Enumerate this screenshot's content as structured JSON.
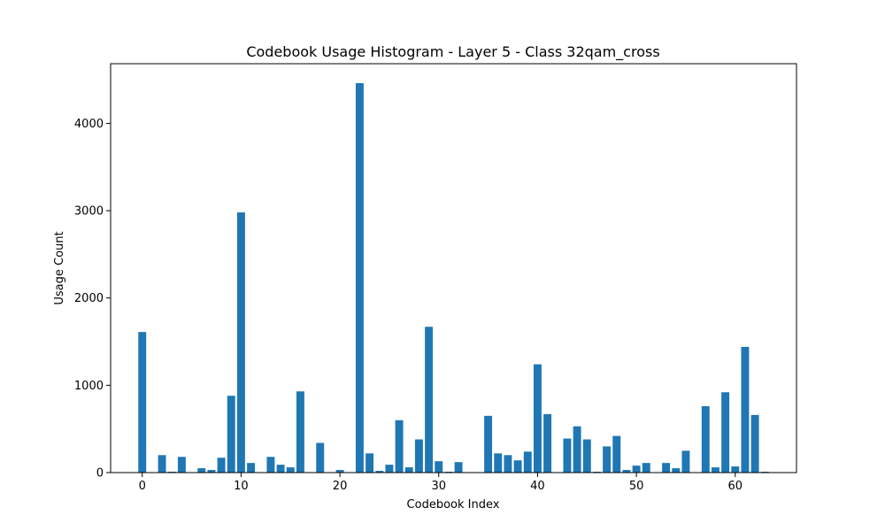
{
  "chart_data": {
    "type": "bar",
    "title": "Codebook Usage Histogram - Layer 5 - Class 32qam_cross",
    "xlabel": "Codebook Index",
    "ylabel": "Usage Count",
    "x": [
      0,
      1,
      2,
      3,
      4,
      5,
      6,
      7,
      8,
      9,
      10,
      11,
      12,
      13,
      14,
      15,
      16,
      17,
      18,
      19,
      20,
      21,
      22,
      23,
      24,
      25,
      26,
      27,
      28,
      29,
      30,
      31,
      32,
      33,
      34,
      35,
      36,
      37,
      38,
      39,
      40,
      41,
      42,
      43,
      44,
      45,
      46,
      47,
      48,
      49,
      50,
      51,
      52,
      53,
      54,
      55,
      56,
      57,
      58,
      59,
      60,
      61,
      62,
      63
    ],
    "values": [
      1610,
      0,
      200,
      10,
      180,
      0,
      50,
      30,
      170,
      880,
      2980,
      110,
      0,
      180,
      90,
      60,
      930,
      0,
      340,
      0,
      30,
      0,
      4460,
      220,
      20,
      90,
      600,
      60,
      380,
      1670,
      130,
      10,
      120,
      0,
      0,
      650,
      220,
      200,
      140,
      240,
      1240,
      670,
      0,
      390,
      530,
      380,
      10,
      300,
      420,
      30,
      80,
      110,
      0,
      110,
      50,
      250,
      0,
      760,
      60,
      920,
      70,
      1440,
      660,
      10
    ],
    "xlim": [
      -3.2,
      66.2
    ],
    "ylim": [
      0,
      4683
    ],
    "xticks": [
      0,
      10,
      20,
      30,
      40,
      50,
      60
    ],
    "yticks": [
      0,
      1000,
      2000,
      3000,
      4000
    ],
    "bar_color": "#1f77b4",
    "grid": false
  }
}
